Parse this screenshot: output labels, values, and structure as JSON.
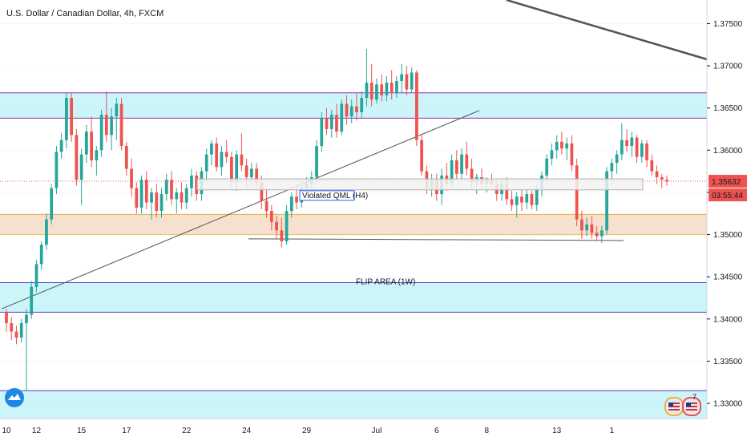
{
  "window": {
    "title": "U.S. Dollar / Canadian Dollar, 4h, FXCM",
    "price_tag": "1.35632",
    "countdown_tag": "03:55:44"
  },
  "annotations": {
    "violated": "Violated QML (H4)",
    "flip": "FLIP AREA (1W)"
  },
  "colors": {
    "bull": "#26a69a",
    "bear": "#ef5350",
    "zone_cyan": "#ccf5fa",
    "zone_orange": "#f6e0cf",
    "zone_line_purple": "#9c27b0",
    "zone_line_blue": "#5c3fbf",
    "zone_line_orange": "#f2b134",
    "trendline": "#555555",
    "price_tag_bg": "#ef5350"
  },
  "icons": {
    "logo": "tradingview-cloud-icon",
    "flag": "us-flag-icon",
    "event_count": "7"
  },
  "chart_data": {
    "type": "candlestick",
    "symbol": "USDCAD",
    "interval": "4h",
    "ylim": [
      1.3282,
      1.3778
    ],
    "y_ticks": [
      "1.37500",
      "1.37000",
      "1.36500",
      "1.36000",
      "1.35500",
      "1.35000",
      "1.34500",
      "1.34000",
      "1.33500",
      "1.33000"
    ],
    "x_ticks": [
      "10",
      "12",
      "15",
      "17",
      "22",
      "24",
      "29",
      "Jul",
      "6",
      "8",
      "13",
      "1"
    ],
    "last_price": 1.35632,
    "levels": [
      {
        "name": "resistance-zone",
        "top": 1.3668,
        "bottom": 1.3638,
        "fill": "cyan"
      },
      {
        "name": "demand-zone",
        "top": 1.3524,
        "bottom": 1.35,
        "fill": "orange"
      },
      {
        "name": "flip-area",
        "top": 1.3443,
        "bottom": 1.3408,
        "fill": "cyan"
      },
      {
        "name": "bottom-zone",
        "top": 1.3315,
        "bottom": 1.3282,
        "fill": "cyan"
      }
    ],
    "candles": [
      [
        1.3408,
        1.3412,
        1.3385,
        1.3395
      ],
      [
        1.3395,
        1.3402,
        1.3375,
        1.3385
      ],
      [
        1.3385,
        1.3392,
        1.337,
        1.3378
      ],
      [
        1.3378,
        1.34,
        1.3372,
        1.3395
      ],
      [
        1.3395,
        1.3412,
        1.3315,
        1.3405
      ],
      [
        1.3405,
        1.3445,
        1.34,
        1.3438
      ],
      [
        1.3438,
        1.347,
        1.3432,
        1.3465
      ],
      [
        1.3465,
        1.3492,
        1.3458,
        1.3488
      ],
      [
        1.3488,
        1.3525,
        1.3482,
        1.3518
      ],
      [
        1.3518,
        1.356,
        1.3512,
        1.3555
      ],
      [
        1.3555,
        1.3605,
        1.3548,
        1.3598
      ],
      [
        1.3598,
        1.362,
        1.359,
        1.3612
      ],
      [
        1.3612,
        1.3668,
        1.3602,
        1.3662
      ],
      [
        1.3662,
        1.3668,
        1.361,
        1.3618
      ],
      [
        1.3618,
        1.3625,
        1.3558,
        1.3565
      ],
      [
        1.3565,
        1.3602,
        1.3535,
        1.3595
      ],
      [
        1.3595,
        1.363,
        1.3585,
        1.3622
      ],
      [
        1.3622,
        1.364,
        1.358,
        1.3588
      ],
      [
        1.3588,
        1.3605,
        1.357,
        1.36
      ],
      [
        1.36,
        1.3648,
        1.3592,
        1.3642
      ],
      [
        1.3642,
        1.367,
        1.361,
        1.3618
      ],
      [
        1.3618,
        1.365,
        1.36,
        1.364
      ],
      [
        1.364,
        1.3662,
        1.3612,
        1.3655
      ],
      [
        1.3655,
        1.3662,
        1.36,
        1.3605
      ],
      [
        1.3605,
        1.361,
        1.357,
        1.3578
      ],
      [
        1.3578,
        1.359,
        1.3545,
        1.3555
      ],
      [
        1.3555,
        1.3562,
        1.3525,
        1.3532
      ],
      [
        1.3532,
        1.357,
        1.3525,
        1.3565
      ],
      [
        1.3565,
        1.3575,
        1.353,
        1.3538
      ],
      [
        1.3538,
        1.3555,
        1.3518,
        1.355
      ],
      [
        1.355,
        1.356,
        1.352,
        1.3528
      ],
      [
        1.3528,
        1.3555,
        1.352,
        1.3548
      ],
      [
        1.3548,
        1.3572,
        1.354,
        1.3565
      ],
      [
        1.3565,
        1.3575,
        1.3535,
        1.3542
      ],
      [
        1.3542,
        1.3555,
        1.3525,
        1.355
      ],
      [
        1.355,
        1.3562,
        1.353,
        1.3538
      ],
      [
        1.3538,
        1.356,
        1.353,
        1.3555
      ],
      [
        1.3555,
        1.3578,
        1.3545,
        1.357
      ],
      [
        1.357,
        1.3575,
        1.354,
        1.3548
      ],
      [
        1.3548,
        1.358,
        1.354,
        1.3575
      ],
      [
        1.3575,
        1.3602,
        1.3562,
        1.3595
      ],
      [
        1.3595,
        1.3612,
        1.3582,
        1.3608
      ],
      [
        1.3608,
        1.3615,
        1.3575,
        1.358
      ],
      [
        1.358,
        1.3605,
        1.357,
        1.3598
      ],
      [
        1.3598,
        1.3612,
        1.3585,
        1.3592
      ],
      [
        1.3592,
        1.3598,
        1.3555,
        1.3562
      ],
      [
        1.3562,
        1.36,
        1.3552,
        1.3595
      ],
      [
        1.3595,
        1.362,
        1.3575,
        1.3582
      ],
      [
        1.3582,
        1.359,
        1.3555,
        1.3568
      ],
      [
        1.3568,
        1.3585,
        1.356,
        1.3578
      ],
      [
        1.3578,
        1.3585,
        1.3555,
        1.3562
      ],
      [
        1.3562,
        1.357,
        1.353,
        1.354
      ],
      [
        1.354,
        1.3555,
        1.352,
        1.3528
      ],
      [
        1.3528,
        1.3535,
        1.3505,
        1.3515
      ],
      [
        1.3515,
        1.3522,
        1.3495,
        1.3505
      ],
      [
        1.3505,
        1.352,
        1.3485,
        1.3492
      ],
      [
        1.3492,
        1.3535,
        1.3488,
        1.3528
      ],
      [
        1.3528,
        1.355,
        1.352,
        1.3545
      ],
      [
        1.3545,
        1.356,
        1.353,
        1.3538
      ],
      [
        1.3538,
        1.3562,
        1.3532,
        1.3555
      ],
      [
        1.3555,
        1.3568,
        1.3545,
        1.356
      ],
      [
        1.356,
        1.3575,
        1.355,
        1.3568
      ],
      [
        1.3568,
        1.3612,
        1.356,
        1.3605
      ],
      [
        1.3605,
        1.3645,
        1.3598,
        1.3638
      ],
      [
        1.3638,
        1.365,
        1.3618,
        1.3625
      ],
      [
        1.3625,
        1.3648,
        1.3615,
        1.3642
      ],
      [
        1.3642,
        1.3655,
        1.3615,
        1.3622
      ],
      [
        1.3622,
        1.366,
        1.3618,
        1.3655
      ],
      [
        1.3655,
        1.3665,
        1.363,
        1.364
      ],
      [
        1.364,
        1.366,
        1.3632,
        1.3652
      ],
      [
        1.3652,
        1.3668,
        1.3635,
        1.3645
      ],
      [
        1.3645,
        1.367,
        1.3638,
        1.3662
      ],
      [
        1.3662,
        1.372,
        1.3652,
        1.368
      ],
      [
        1.368,
        1.3702,
        1.3652,
        1.366
      ],
      [
        1.366,
        1.3685,
        1.3655,
        1.3678
      ],
      [
        1.3678,
        1.369,
        1.3658,
        1.3665
      ],
      [
        1.3665,
        1.3688,
        1.3658,
        1.368
      ],
      [
        1.368,
        1.3695,
        1.366,
        1.3668
      ],
      [
        1.3668,
        1.3688,
        1.3662,
        1.3682
      ],
      [
        1.3682,
        1.3702,
        1.3668,
        1.369
      ],
      [
        1.369,
        1.37,
        1.3665,
        1.3672
      ],
      [
        1.3672,
        1.3698,
        1.3668,
        1.3692
      ],
      [
        1.3692,
        1.3695,
        1.3605,
        1.3612
      ],
      [
        1.3612,
        1.3618,
        1.357,
        1.3575
      ],
      [
        1.3575,
        1.3582,
        1.3548,
        1.3555
      ],
      [
        1.3555,
        1.3572,
        1.3545,
        1.3565
      ],
      [
        1.3565,
        1.3572,
        1.354,
        1.3548
      ],
      [
        1.3548,
        1.3578,
        1.3535,
        1.357
      ],
      [
        1.357,
        1.3585,
        1.3552,
        1.356
      ],
      [
        1.356,
        1.3595,
        1.3555,
        1.3588
      ],
      [
        1.3588,
        1.36,
        1.3565,
        1.3572
      ],
      [
        1.3572,
        1.3602,
        1.3565,
        1.3595
      ],
      [
        1.3595,
        1.361,
        1.357,
        1.3578
      ],
      [
        1.3578,
        1.359,
        1.3555,
        1.3562
      ],
      [
        1.3562,
        1.3572,
        1.3548,
        1.3568
      ],
      [
        1.3568,
        1.3578,
        1.3555,
        1.356
      ],
      [
        1.356,
        1.3568,
        1.355,
        1.3565
      ],
      [
        1.3565,
        1.3572,
        1.3555,
        1.356
      ],
      [
        1.356,
        1.3565,
        1.354,
        1.3548
      ],
      [
        1.3548,
        1.3565,
        1.354,
        1.356
      ],
      [
        1.356,
        1.3568,
        1.3535,
        1.3542
      ],
      [
        1.3542,
        1.3552,
        1.3528,
        1.3535
      ],
      [
        1.3535,
        1.355,
        1.352,
        1.3545
      ],
      [
        1.3545,
        1.3555,
        1.3528,
        1.3538
      ],
      [
        1.3538,
        1.3555,
        1.353,
        1.3548
      ],
      [
        1.3548,
        1.3552,
        1.353,
        1.3535
      ],
      [
        1.3535,
        1.356,
        1.3528,
        1.3555
      ],
      [
        1.3555,
        1.3575,
        1.3545,
        1.357
      ],
      [
        1.357,
        1.3595,
        1.3562,
        1.359
      ],
      [
        1.359,
        1.3608,
        1.3582,
        1.36
      ],
      [
        1.36,
        1.3618,
        1.359,
        1.361
      ],
      [
        1.361,
        1.3622,
        1.3595,
        1.3602
      ],
      [
        1.3602,
        1.3615,
        1.3588,
        1.3608
      ],
      [
        1.3608,
        1.3618,
        1.3575,
        1.3582
      ],
      [
        1.3582,
        1.359,
        1.351,
        1.3518
      ],
      [
        1.3518,
        1.3528,
        1.3495,
        1.3505
      ],
      [
        1.3505,
        1.352,
        1.3498,
        1.3512
      ],
      [
        1.3512,
        1.3522,
        1.3495,
        1.3502
      ],
      [
        1.3502,
        1.351,
        1.3492,
        1.3498
      ],
      [
        1.3498,
        1.351,
        1.349,
        1.3505
      ],
      [
        1.3505,
        1.358,
        1.35,
        1.3575
      ],
      [
        1.3575,
        1.359,
        1.356,
        1.3585
      ],
      [
        1.3585,
        1.36,
        1.3572,
        1.3595
      ],
      [
        1.3595,
        1.3632,
        1.3588,
        1.3612
      ],
      [
        1.3612,
        1.3625,
        1.3598,
        1.3605
      ],
      [
        1.3605,
        1.3622,
        1.3592,
        1.3615
      ],
      [
        1.3615,
        1.3618,
        1.3585,
        1.3592
      ],
      [
        1.3592,
        1.3612,
        1.3585,
        1.3608
      ],
      [
        1.3608,
        1.3612,
        1.358,
        1.3588
      ],
      [
        1.3588,
        1.3595,
        1.357,
        1.3575
      ],
      [
        1.3575,
        1.3582,
        1.356,
        1.3568
      ],
      [
        1.3568,
        1.3572,
        1.3555,
        1.3565
      ],
      [
        1.3565,
        1.357,
        1.3558,
        1.3563
      ]
    ],
    "x_tick_index": [
      0,
      6,
      15,
      24,
      36,
      48,
      60,
      74,
      86,
      96,
      110,
      121
    ]
  }
}
